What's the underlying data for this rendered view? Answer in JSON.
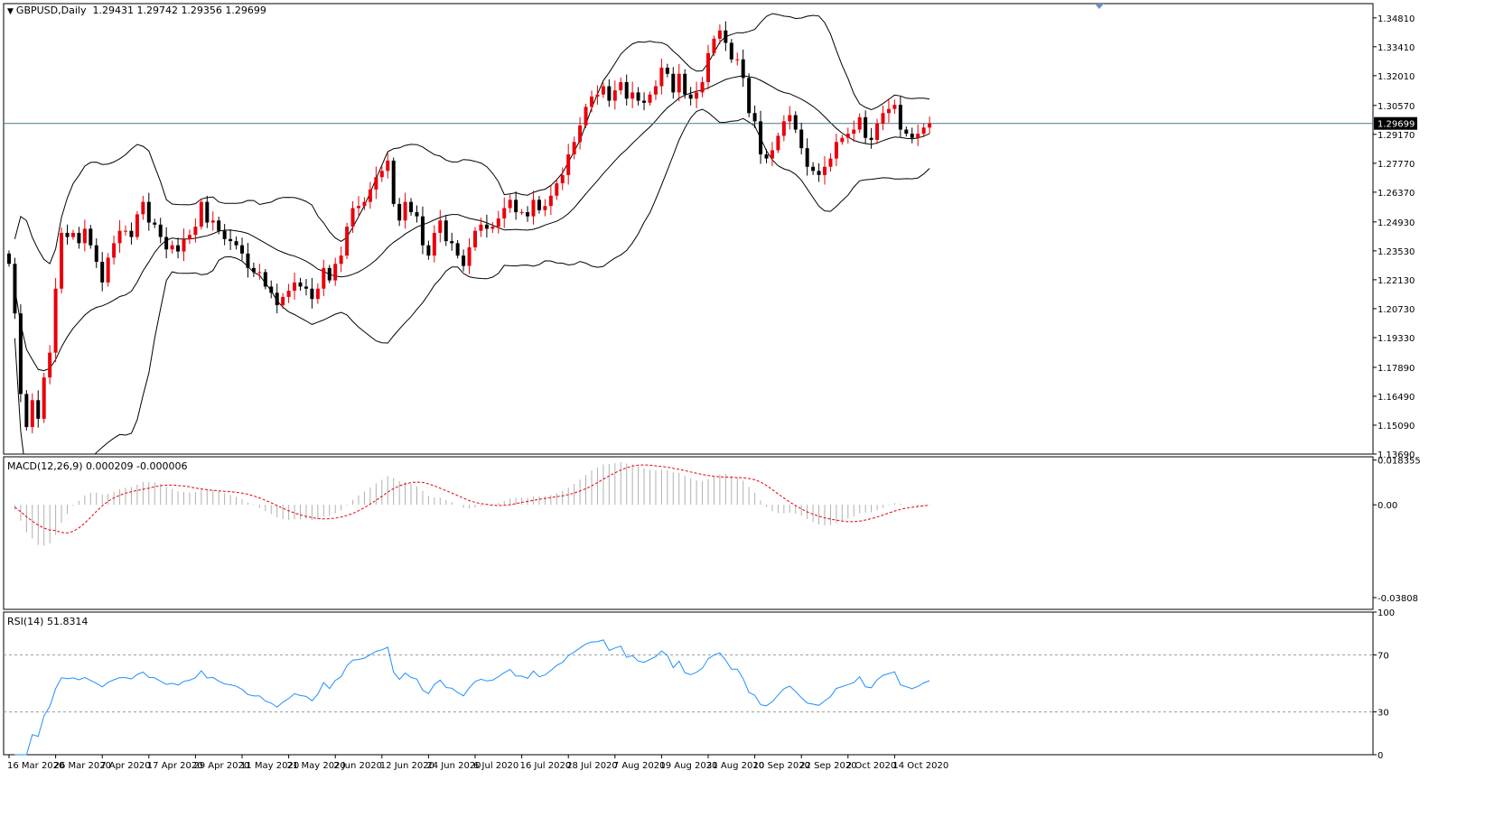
{
  "header": {
    "symbol": "GBPUSD,Daily",
    "ohlc": "1.29431 1.29742 1.29356 1.29699"
  },
  "macd_label": "MACD(12,26,9) 0.000209 -0.000006",
  "rsi_label": "RSI(14) 51.8314",
  "colors": {
    "bull": "#e8000b",
    "bear": "#000000",
    "band": "#000000",
    "macd_hist": "#b0b0b0",
    "macd_signal": "#e8000b",
    "rsi": "#1e90ff",
    "current_line": "#4a7a8c"
  },
  "chart_data": [
    {
      "type": "candlestick",
      "panel": "price",
      "symbol": "GBPUSD",
      "timeframe": "Daily",
      "last_price": 1.29699,
      "current_price_label": "1.29699",
      "ylim": [
        1.1369,
        1.355
      ],
      "y_ticks": [
        "1.34810",
        "1.33410",
        "1.32010",
        "1.30570",
        "1.29170",
        "1.27770",
        "1.26370",
        "1.24930",
        "1.23530",
        "1.22130",
        "1.20730",
        "1.19330",
        "1.17890",
        "1.16490",
        "1.15090",
        "1.13690"
      ],
      "x_labels": [
        "16 Mar 2020",
        "26 Mar 2020",
        "7 Apr 2020",
        "17 Apr 2020",
        "29 Apr 2020",
        "11 May 2020",
        "21 May 2020",
        "2 Jun 2020",
        "12 Jun 2020",
        "24 Jun 2020",
        "6 Jul 2020",
        "16 Jul 2020",
        "28 Jul 2020",
        "7 Aug 2020",
        "19 Aug 2020",
        "31 Aug 2020",
        "10 Sep 2020",
        "22 Sep 2020",
        "2 Oct 2020",
        "14 Oct 2020"
      ],
      "closes": [
        1.229,
        1.205,
        1.166,
        1.15,
        1.163,
        1.154,
        1.174,
        1.186,
        1.217,
        1.244,
        1.242,
        1.244,
        1.239,
        1.246,
        1.238,
        1.23,
        1.22,
        1.232,
        1.239,
        1.245,
        1.245,
        1.242,
        1.253,
        1.259,
        1.249,
        1.248,
        1.242,
        1.236,
        1.238,
        1.235,
        1.241,
        1.243,
        1.247,
        1.259,
        1.249,
        1.25,
        1.245,
        1.241,
        1.24,
        1.238,
        1.234,
        1.227,
        1.225,
        1.225,
        1.218,
        1.215,
        1.209,
        1.213,
        1.216,
        1.22,
        1.218,
        1.217,
        1.212,
        1.217,
        1.227,
        1.221,
        1.229,
        1.233,
        1.247,
        1.256,
        1.257,
        1.259,
        1.265,
        1.271,
        1.274,
        1.279,
        1.258,
        1.25,
        1.259,
        1.254,
        1.252,
        1.238,
        1.233,
        1.244,
        1.25,
        1.24,
        1.239,
        1.233,
        1.228,
        1.237,
        1.245,
        1.248,
        1.246,
        1.247,
        1.251,
        1.256,
        1.26,
        1.254,
        1.254,
        1.252,
        1.26,
        1.255,
        1.257,
        1.262,
        1.268,
        1.272,
        1.282,
        1.288,
        1.296,
        1.305,
        1.31,
        1.311,
        1.315,
        1.308,
        1.313,
        1.317,
        1.309,
        1.312,
        1.308,
        1.307,
        1.311,
        1.315,
        1.324,
        1.321,
        1.312,
        1.321,
        1.311,
        1.309,
        1.312,
        1.317,
        1.331,
        1.338,
        1.342,
        1.336,
        1.328,
        1.328,
        1.319,
        1.302,
        1.298,
        1.282,
        1.28,
        1.284,
        1.291,
        1.298,
        1.301,
        1.294,
        1.285,
        1.276,
        1.274,
        1.272,
        1.276,
        1.28,
        1.288,
        1.29,
        1.292,
        1.294,
        1.3,
        1.29,
        1.289,
        1.297,
        1.302,
        1.304,
        1.306,
        1.294,
        1.292,
        1.29,
        1.292,
        1.295,
        1.297
      ]
    },
    {
      "type": "line",
      "panel": "macd",
      "name": "MACD(12,26,9)",
      "values_label": "0.000209 -0.000006",
      "y_ticks": [
        "0.018355",
        "0.00",
        "-0.03808"
      ],
      "ylim": [
        -0.0429,
        0.0197
      ]
    },
    {
      "type": "line",
      "panel": "rsi",
      "name": "RSI(14)",
      "value": 51.8314,
      "y_ticks": [
        "100",
        "70",
        "30",
        "0"
      ],
      "levels": [
        70,
        30
      ],
      "ylim": [
        0,
        100
      ]
    }
  ]
}
